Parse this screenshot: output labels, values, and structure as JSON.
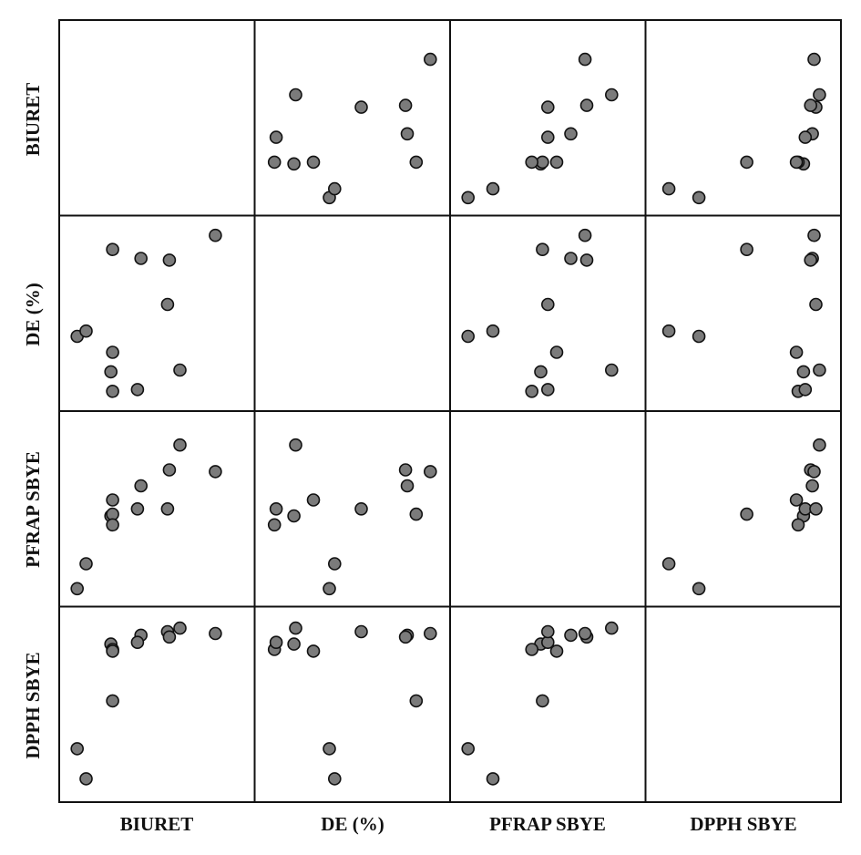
{
  "chart_data": {
    "type": "scatter",
    "variables": [
      "BIURET",
      "DE (%)",
      "PFRAP SBYE",
      "DPPH SBYE"
    ],
    "grid": false,
    "diagonal": "empty",
    "observations": [
      {
        "BIURET": 0.05,
        "DE (%)": 0.37,
        "PFRAP SBYE": 0.05,
        "DPPH SBYE": 0.25
      },
      {
        "BIURET": 0.1,
        "DE (%)": 0.4,
        "PFRAP SBYE": 0.19,
        "DPPH SBYE": 0.08
      },
      {
        "BIURET": 0.24,
        "DE (%)": 0.17,
        "PFRAP SBYE": 0.46,
        "DPPH SBYE": 0.84
      },
      {
        "BIURET": 0.25,
        "DE (%)": 0.86,
        "PFRAP SBYE": 0.47,
        "DPPH SBYE": 0.52
      },
      {
        "BIURET": 0.25,
        "DE (%)": 0.06,
        "PFRAP SBYE": 0.41,
        "DPPH SBYE": 0.81
      },
      {
        "BIURET": 0.25,
        "DE (%)": 0.28,
        "PFRAP SBYE": 0.55,
        "DPPH SBYE": 0.8
      },
      {
        "BIURET": 0.41,
        "DE (%)": 0.81,
        "PFRAP SBYE": 0.63,
        "DPPH SBYE": 0.89
      },
      {
        "BIURET": 0.39,
        "DE (%)": 0.07,
        "PFRAP SBYE": 0.5,
        "DPPH SBYE": 0.85
      },
      {
        "BIURET": 0.56,
        "DE (%)": 0.55,
        "PFRAP SBYE": 0.5,
        "DPPH SBYE": 0.91
      },
      {
        "BIURET": 0.57,
        "DE (%)": 0.8,
        "PFRAP SBYE": 0.72,
        "DPPH SBYE": 0.88
      },
      {
        "BIURET": 0.63,
        "DE (%)": 0.18,
        "PFRAP SBYE": 0.86,
        "DPPH SBYE": 0.93
      },
      {
        "BIURET": 0.83,
        "DE (%)": 0.94,
        "PFRAP SBYE": 0.71,
        "DPPH SBYE": 0.9
      }
    ]
  }
}
